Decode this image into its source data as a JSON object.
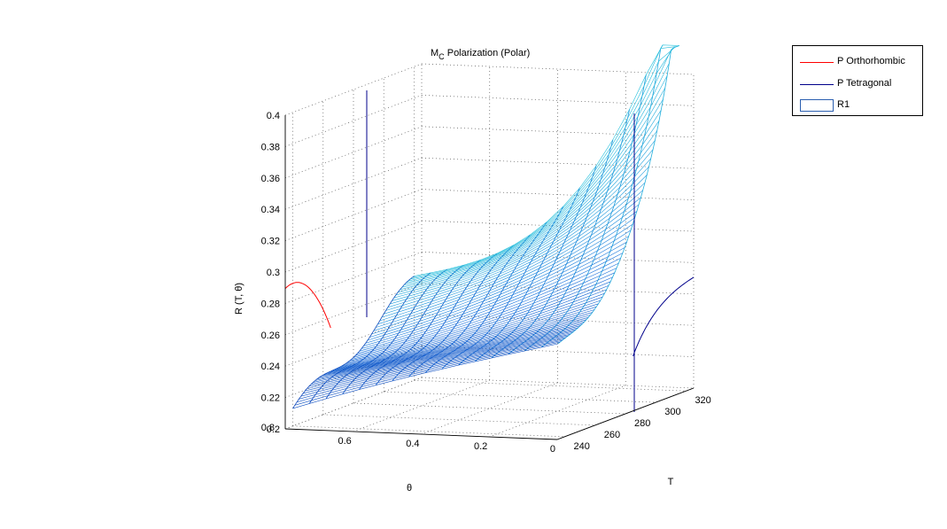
{
  "chart_data": {
    "type": "surface3d",
    "title": "M",
    "title_sub": "C",
    "title_rest": " Polarization (Polar)",
    "xlabel": "T",
    "ylabel": "θ",
    "zlabel": "R (T, θ)",
    "x_ticks": [
      "240",
      "260",
      "280",
      "300",
      "320"
    ],
    "y_ticks": [
      "0",
      "0.2",
      "0.4",
      "0.6",
      "0.8"
    ],
    "z_ticks": [
      "0.2",
      "0.22",
      "0.24",
      "0.26",
      "0.28",
      "0.3",
      "0.32",
      "0.34",
      "0.36",
      "0.38",
      "0.4"
    ],
    "xlim": [
      235,
      325
    ],
    "ylim": [
      0,
      0.8
    ],
    "zlim": [
      0.2,
      0.4
    ],
    "grid": true,
    "legend_position": "top-right",
    "series": [
      {
        "name": "P Orthorhombic",
        "color": "#ff0000",
        "kind": "line"
      },
      {
        "name": "P Tetragonal",
        "color": "#00008b",
        "kind": "line"
      },
      {
        "name": "R1",
        "color": "#2b5fb0",
        "kind": "surface"
      }
    ]
  }
}
